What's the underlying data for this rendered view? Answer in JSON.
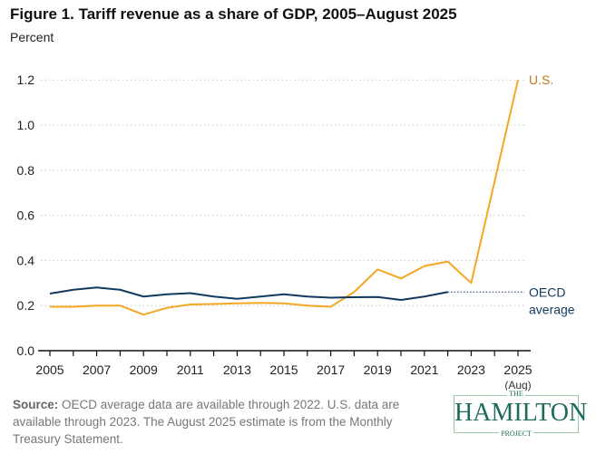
{
  "chart_data": {
    "type": "line",
    "title": "Figure 1. Tariff revenue as a share of GDP, 2005–August 2025",
    "ylabel": "Percent",
    "ylim": [
      0,
      1.2
    ],
    "yticks": [
      "0.0",
      "0.2",
      "0.4",
      "0.6",
      "0.8",
      "1.0",
      "1.2"
    ],
    "xticks": [
      "2005",
      "2007",
      "2009",
      "2011",
      "2013",
      "2015",
      "2017",
      "2019",
      "2021",
      "2023",
      "2025"
    ],
    "xtick_note": "(Aug)",
    "grid": true,
    "series": [
      {
        "name": "U.S.",
        "color": "#f5a623",
        "x": [
          2005,
          2006,
          2007,
          2008,
          2009,
          2010,
          2011,
          2012,
          2013,
          2014,
          2015,
          2016,
          2017,
          2018,
          2019,
          2020,
          2021,
          2022,
          2023,
          2025
        ],
        "values": [
          0.195,
          0.195,
          0.2,
          0.2,
          0.16,
          0.19,
          0.205,
          0.207,
          0.21,
          0.212,
          0.21,
          0.2,
          0.195,
          0.26,
          0.36,
          0.32,
          0.375,
          0.395,
          0.3,
          1.2
        ]
      },
      {
        "name": "OECD average",
        "color": "#12395f",
        "x": [
          2005,
          2006,
          2007,
          2008,
          2009,
          2010,
          2011,
          2012,
          2013,
          2014,
          2015,
          2016,
          2017,
          2018,
          2019,
          2020,
          2021,
          2022
        ],
        "values": [
          0.253,
          0.27,
          0.28,
          0.27,
          0.24,
          0.25,
          0.255,
          0.24,
          0.23,
          0.24,
          0.25,
          0.24,
          0.235,
          0.237,
          0.238,
          0.225,
          0.24,
          0.26
        ]
      }
    ],
    "source_label": "Source:",
    "source": "OECD average data are available through 2022. U.S. data are available through 2023. The August 2025 estimate is from the Monthly Treasury Statement."
  },
  "logo": {
    "top": "THE",
    "main": "HAMILTON",
    "bottom": "PROJECT"
  }
}
